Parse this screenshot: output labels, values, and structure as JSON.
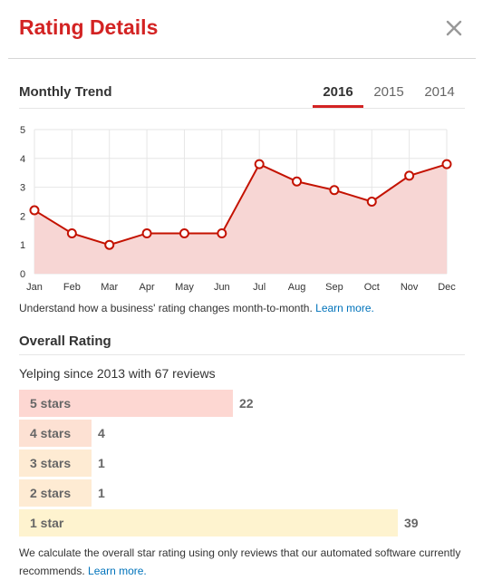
{
  "header": {
    "title": "Rating Details",
    "close_icon": "close-icon"
  },
  "trend": {
    "title": "Monthly Trend",
    "tabs": [
      {
        "label": "2016",
        "active": true
      },
      {
        "label": "2015",
        "active": false
      },
      {
        "label": "2014",
        "active": false
      }
    ],
    "note_text": "Understand how a business' rating changes month-to-month.",
    "note_link": "Learn more."
  },
  "chart_data": {
    "type": "area",
    "categories": [
      "Jan",
      "Feb",
      "Mar",
      "Apr",
      "May",
      "Jun",
      "Jul",
      "Aug",
      "Sep",
      "Oct",
      "Nov",
      "Dec"
    ],
    "values": [
      2.2,
      1.4,
      1.0,
      1.4,
      1.4,
      1.4,
      3.8,
      3.2,
      2.9,
      2.5,
      3.4,
      3.8
    ],
    "yticks": [
      "0",
      "1",
      "2",
      "3",
      "4",
      "5"
    ],
    "ylim": [
      0,
      5
    ],
    "grid": true,
    "line_color": "#c41200",
    "fill_color": "#f7d6d4"
  },
  "overall": {
    "title": "Overall Rating",
    "since": "Yelping since 2013 with 67 reviews",
    "distribution": [
      {
        "label": "5 stars",
        "count": "22",
        "share": 22,
        "color": "#fdd7d2"
      },
      {
        "label": "4 stars",
        "count": "4",
        "share": 4,
        "color": "#fde1d3"
      },
      {
        "label": "3 stars",
        "count": "1",
        "share": 1,
        "color": "#feebd3"
      },
      {
        "label": "2 stars",
        "count": "1",
        "share": 1,
        "color": "#feebd3"
      },
      {
        "label": "1 star",
        "count": "39",
        "share": 39,
        "color": "#fef3cf"
      }
    ],
    "footer_text": "We calculate the overall star rating using only reviews that our automated software currently recommends.",
    "footer_link": "Learn more."
  }
}
